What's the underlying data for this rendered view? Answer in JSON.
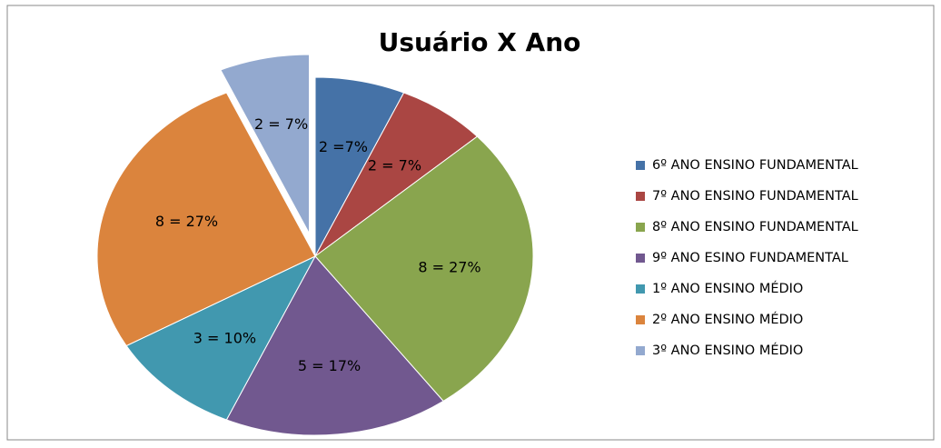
{
  "chart_data": {
    "type": "pie",
    "title": "Usuário X Ano",
    "categories": [
      "6º ANO ENSINO FUNDAMENTAL",
      "7º ANO ENSINO FUNDAMENTAL",
      "8º ANO ENSINO FUNDAMENTAL",
      "9º ANO ESINO FUNDAMENTAL",
      "1º ANO ENSINO MÉDIO",
      "2º ANO ENSINO MÉDIO",
      "3º ANO ENSINO MÉDIO"
    ],
    "values": [
      2,
      2,
      8,
      5,
      3,
      8,
      2
    ],
    "value_labels": [
      "2 =7%",
      "2 = 7%",
      "8 = 27%",
      "5 = 17%",
      "3 = 10%",
      "8 = 27%",
      "2 = 7%"
    ],
    "colors": [
      "#4572a7",
      "#aa4643",
      "#89a54e",
      "#71588f",
      "#4198af",
      "#db843d",
      "#93a9cf"
    ],
    "exploded": [
      false,
      false,
      false,
      false,
      false,
      false,
      true
    ],
    "legend": "right"
  }
}
